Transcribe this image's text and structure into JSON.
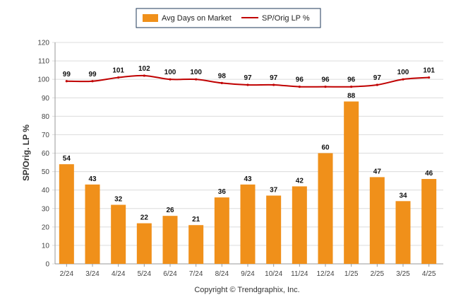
{
  "chart_data": {
    "type": "bar",
    "categories": [
      "2/24",
      "3/24",
      "4/24",
      "5/24",
      "6/24",
      "7/24",
      "8/24",
      "9/24",
      "10/24",
      "11/24",
      "12/24",
      "1/25",
      "2/25",
      "3/25",
      "4/25"
    ],
    "series": [
      {
        "name": "Avg Days on Market",
        "type": "bar",
        "color": "#f0901a",
        "values": [
          54,
          43,
          32,
          22,
          26,
          21,
          36,
          43,
          37,
          42,
          60,
          88,
          47,
          34,
          46
        ]
      },
      {
        "name": "SP/Orig LP %",
        "type": "line",
        "color": "#c00000",
        "values": [
          99,
          99,
          101,
          102,
          100,
          100,
          98,
          97,
          97,
          96,
          96,
          96,
          97,
          100,
          101
        ]
      }
    ],
    "ylabel": "SP/Orig. LP %",
    "ylim": [
      0,
      120
    ],
    "yticks": [
      0,
      10,
      20,
      30,
      40,
      50,
      60,
      70,
      80,
      90,
      100,
      110,
      120
    ],
    "grid": true,
    "legend_position": "top-center"
  },
  "footer": {
    "copyright": "Copyright © Trendgraphix, Inc."
  }
}
